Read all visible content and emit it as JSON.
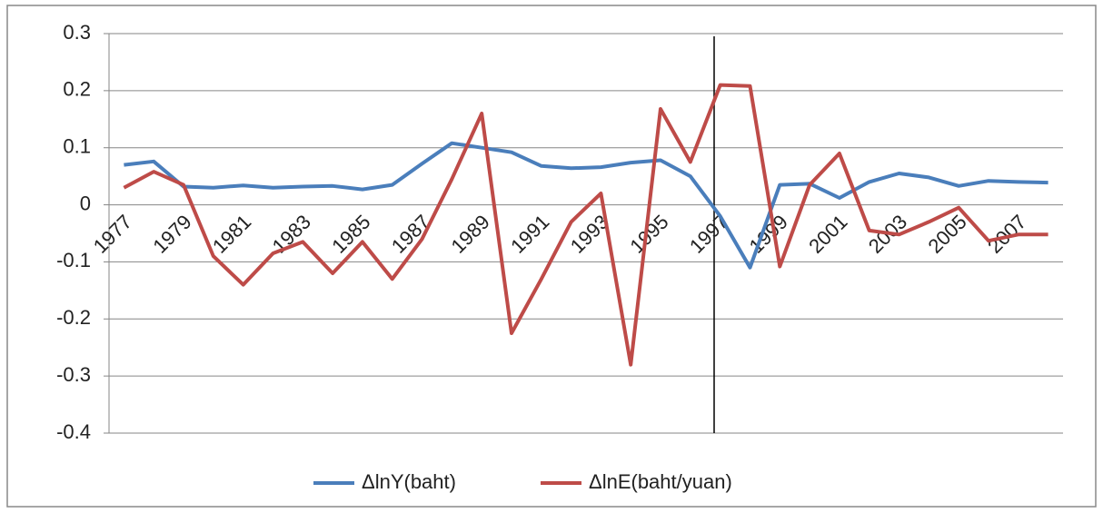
{
  "chart_data": {
    "type": "line",
    "categories": [
      "1977",
      null,
      "1979",
      null,
      "1981",
      null,
      "1983",
      null,
      "1985",
      null,
      "1987",
      null,
      "1989",
      null,
      "1991",
      null,
      "1993",
      null,
      "1995",
      null,
      "1997",
      null,
      "1999",
      null,
      "2001",
      null,
      "2003",
      null,
      "2005",
      null,
      "2007",
      null
    ],
    "series": [
      {
        "name": "ΔlnY(baht)",
        "color": "#4a7ebb",
        "values": [
          0.07,
          0.076,
          0.032,
          0.03,
          0.034,
          0.03,
          0.032,
          0.033,
          0.027,
          0.035,
          0.072,
          0.108,
          0.1,
          0.092,
          0.068,
          0.064,
          0.066,
          0.074,
          0.078,
          0.05,
          -0.02,
          -0.11,
          0.035,
          0.037,
          0.012,
          0.04,
          0.055,
          0.048,
          0.033,
          0.042,
          0.04,
          0.039
        ]
      },
      {
        "name": "ΔlnE(baht/yuan)",
        "color": "#be4b48",
        "values": [
          0.03,
          0.058,
          0.035,
          -0.09,
          -0.14,
          -0.085,
          -0.065,
          -0.12,
          -0.065,
          -0.13,
          -0.06,
          0.045,
          0.16,
          -0.225,
          -0.13,
          -0.03,
          0.02,
          -0.28,
          0.168,
          0.075,
          0.21,
          0.208,
          -0.108,
          0.035,
          0.09,
          -0.045,
          -0.052,
          -0.03,
          -0.005,
          -0.063,
          -0.052,
          -0.052
        ]
      }
    ],
    "ylim": [
      -0.4,
      0.3
    ],
    "yticks": [
      -0.4,
      -0.3,
      -0.2,
      -0.1,
      0,
      0.1,
      0.2,
      0.3
    ],
    "grid": true,
    "legend": "bottom"
  }
}
